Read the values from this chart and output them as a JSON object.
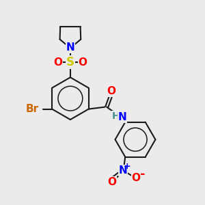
{
  "bg_color": "#ebebeb",
  "bond_color": "#1a1a1a",
  "bond_width": 1.5,
  "atoms": {
    "Br": {
      "color": "#cc6600"
    },
    "N": {
      "color": "#0000ff"
    },
    "S": {
      "color": "#cccc00"
    },
    "O": {
      "color": "#ff0000"
    },
    "H": {
      "color": "#4a9090"
    }
  },
  "fontsize": 11
}
